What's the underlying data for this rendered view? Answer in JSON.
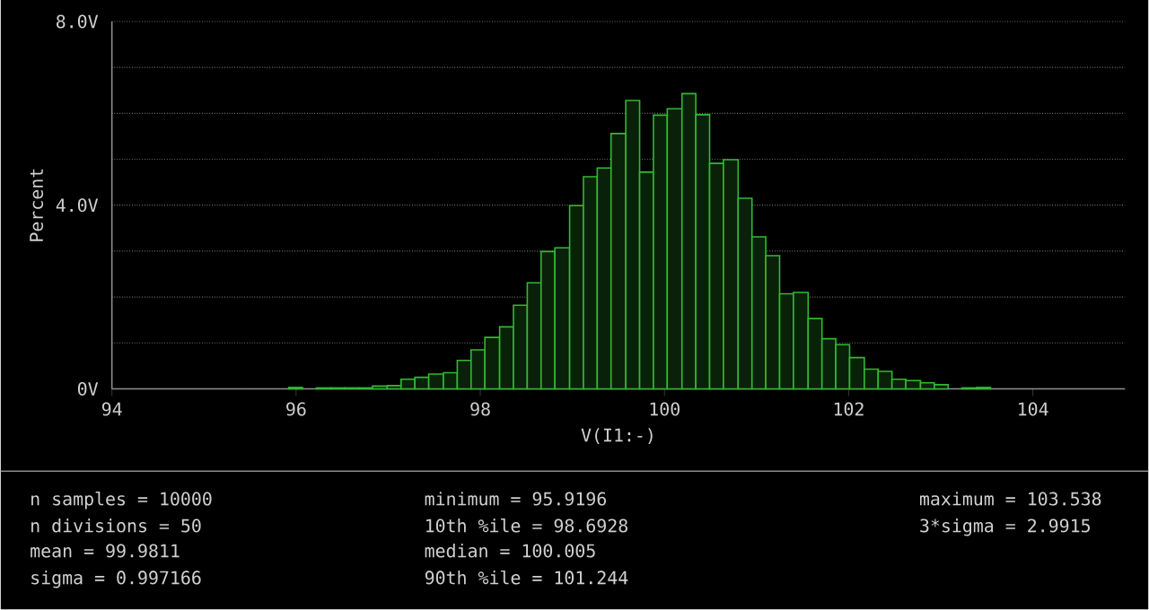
{
  "chart_data": {
    "type": "histogram",
    "xlabel": "V(I1:-)",
    "ylabel": "Percent",
    "bins": [
      95.92,
      96.07,
      96.22,
      96.38,
      96.53,
      96.68,
      96.83,
      96.99,
      97.14,
      97.29,
      97.44,
      97.6,
      97.75,
      97.9,
      98.05,
      98.21,
      98.36,
      98.51,
      98.66,
      98.81,
      98.97,
      99.12,
      99.27,
      99.42,
      99.58,
      99.73,
      99.88,
      100.03,
      100.19,
      100.34,
      100.49,
      100.64,
      100.8,
      100.95,
      101.1,
      101.25,
      101.4,
      101.56,
      101.71,
      101.86,
      102.01,
      102.17,
      102.32,
      102.47,
      102.62,
      102.78,
      102.93,
      103.08,
      103.23,
      103.39,
      103.54
    ],
    "values": [
      0.03,
      0,
      0.02,
      0.02,
      0.02,
      0.02,
      0.06,
      0.07,
      0.21,
      0.25,
      0.32,
      0.35,
      0.62,
      0.85,
      1.12,
      1.35,
      1.82,
      2.31,
      2.99,
      3.07,
      3.99,
      4.62,
      4.81,
      5.56,
      6.28,
      4.72,
      5.96,
      6.1,
      6.43,
      5.97,
      4.91,
      4.99,
      4.15,
      3.31,
      2.9,
      2.07,
      2.1,
      1.53,
      1.09,
      0.96,
      0.68,
      0.43,
      0.38,
      0.21,
      0.18,
      0.13,
      0.09,
      0,
      0.02,
      0.03
    ],
    "color": "#33b833",
    "xlim": [
      94,
      105
    ],
    "xticks": [
      94,
      96,
      98,
      100,
      102,
      104
    ],
    "ylim": [
      0,
      8
    ],
    "yticks": [
      {
        "value": 0,
        "label": "0V"
      },
      {
        "value": 1,
        "label": null
      },
      {
        "value": 2,
        "label": null
      },
      {
        "value": 3,
        "label": null
      },
      {
        "value": 4,
        "label": "4.0V"
      },
      {
        "value": 5,
        "label": null
      },
      {
        "value": 6,
        "label": null
      },
      {
        "value": 7,
        "label": null
      },
      {
        "value": 8,
        "label": "8.0V"
      }
    ],
    "grid": "y",
    "annotations": [
      "n samples = 10000",
      "n divisions = 50",
      "mean = 99.9811",
      "sigma = 0.997166",
      "minimum = 95.9196",
      "10th %ile = 98.6928",
      "median = 100.005",
      "90th %ile = 101.244",
      "maximum = 103.538",
      "3*sigma = 2.9915"
    ]
  }
}
